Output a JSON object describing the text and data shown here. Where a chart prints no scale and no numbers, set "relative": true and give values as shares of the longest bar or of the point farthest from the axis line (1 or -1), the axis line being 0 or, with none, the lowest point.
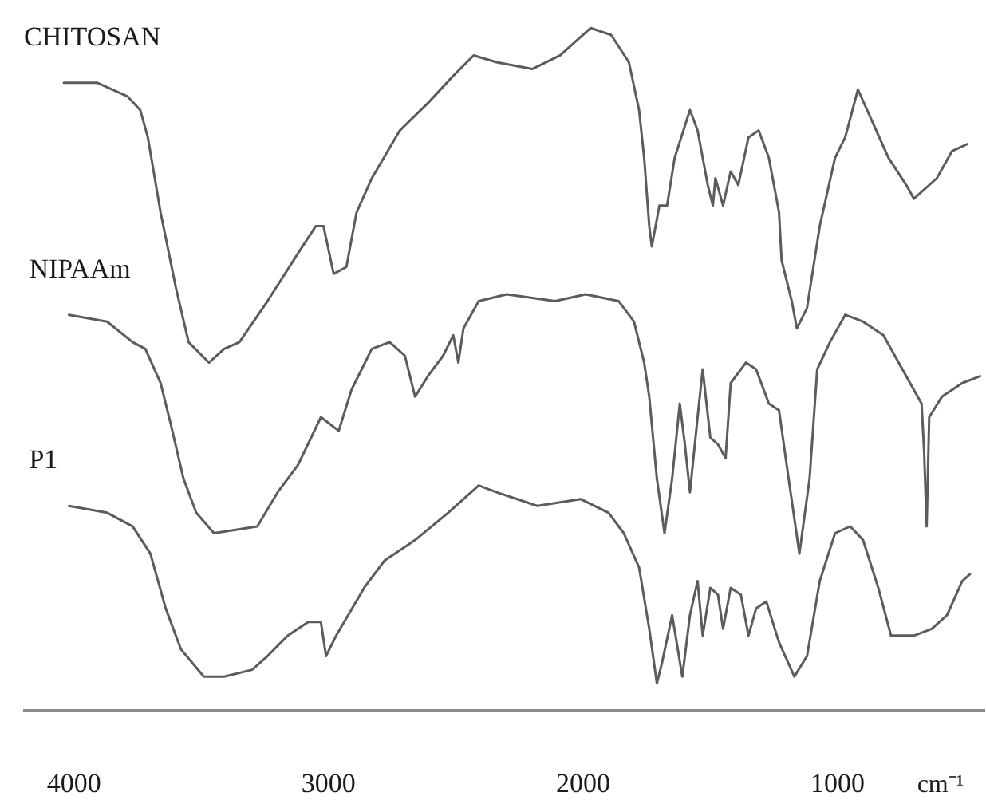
{
  "chart_data": {
    "type": "line",
    "relative": true,
    "xlabel": "cm⁻¹",
    "xlim": [
      4200,
      420
    ],
    "xticks": [
      4000,
      3000,
      2000,
      1000
    ],
    "line_style": "solid",
    "series": [
      {
        "name": "CHITOSAN",
        "color": "#5c5c5c",
        "x": [
          4040,
          3910,
          3790,
          3740,
          3710,
          3660,
          3600,
          3550,
          3470,
          3410,
          3350,
          3240,
          3120,
          3050,
          3020,
          2980,
          2930,
          2890,
          2830,
          2720,
          2610,
          2510,
          2430,
          2340,
          2200,
          2090,
          1970,
          1890,
          1820,
          1780,
          1760,
          1740,
          1730,
          1700,
          1670,
          1640,
          1580,
          1550,
          1510,
          1490,
          1480,
          1450,
          1420,
          1390,
          1350,
          1310,
          1270,
          1230,
          1220,
          1180,
          1160,
          1120,
          1070,
          1010,
          970,
          920,
          860,
          800,
          730,
          700,
          610,
          550,
          490
        ],
        "values": [
          0.92,
          0.92,
          0.9,
          0.88,
          0.84,
          0.73,
          0.62,
          0.54,
          0.51,
          0.53,
          0.54,
          0.6,
          0.67,
          0.71,
          0.71,
          0.64,
          0.65,
          0.73,
          0.78,
          0.85,
          0.89,
          0.93,
          0.96,
          0.95,
          0.94,
          0.96,
          1.0,
          0.99,
          0.95,
          0.88,
          0.81,
          0.71,
          0.68,
          0.74,
          0.74,
          0.81,
          0.88,
          0.85,
          0.77,
          0.74,
          0.78,
          0.74,
          0.79,
          0.77,
          0.84,
          0.85,
          0.81,
          0.73,
          0.66,
          0.6,
          0.56,
          0.59,
          0.71,
          0.81,
          0.84,
          0.91,
          0.86,
          0.81,
          0.77,
          0.75,
          0.78,
          0.82,
          0.83
        ]
      },
      {
        "name": "NIPAAm",
        "color": "#5c5c5c",
        "x": [
          4020,
          3870,
          3770,
          3720,
          3660,
          3620,
          3570,
          3520,
          3450,
          3280,
          3200,
          3120,
          3030,
          2960,
          2910,
          2830,
          2760,
          2700,
          2660,
          2610,
          2550,
          2510,
          2490,
          2470,
          2410,
          2300,
          2110,
          1990,
          1860,
          1800,
          1760,
          1740,
          1710,
          1680,
          1650,
          1620,
          1600,
          1580,
          1550,
          1530,
          1500,
          1470,
          1440,
          1420,
          1360,
          1320,
          1270,
          1230,
          1200,
          1150,
          1110,
          1080,
          1030,
          970,
          900,
          820,
          730,
          670,
          660,
          650,
          640,
          590,
          510,
          440
        ],
        "values": [
          0.58,
          0.57,
          0.54,
          0.53,
          0.48,
          0.42,
          0.34,
          0.29,
          0.26,
          0.27,
          0.32,
          0.36,
          0.43,
          0.41,
          0.47,
          0.53,
          0.54,
          0.52,
          0.46,
          0.49,
          0.52,
          0.55,
          0.51,
          0.56,
          0.6,
          0.61,
          0.6,
          0.61,
          0.6,
          0.57,
          0.51,
          0.46,
          0.34,
          0.26,
          0.34,
          0.45,
          0.39,
          0.32,
          0.43,
          0.5,
          0.4,
          0.39,
          0.37,
          0.48,
          0.51,
          0.5,
          0.45,
          0.44,
          0.36,
          0.23,
          0.34,
          0.5,
          0.54,
          0.58,
          0.57,
          0.55,
          0.49,
          0.45,
          0.38,
          0.27,
          0.43,
          0.46,
          0.48,
          0.49
        ]
      },
      {
        "name": "P1",
        "color": "#5c5c5c",
        "x": [
          4020,
          3870,
          3770,
          3700,
          3640,
          3580,
          3490,
          3410,
          3300,
          3240,
          3160,
          3080,
          3030,
          3010,
          2970,
          2860,
          2780,
          2660,
          2530,
          2410,
          2340,
          2180,
          2010,
          1900,
          1840,
          1780,
          1740,
          1710,
          1690,
          1650,
          1610,
          1580,
          1550,
          1530,
          1500,
          1470,
          1450,
          1420,
          1380,
          1350,
          1320,
          1280,
          1230,
          1170,
          1120,
          1070,
          1010,
          950,
          900,
          840,
          790,
          730,
          700,
          630,
          570,
          510,
          480
        ],
        "values": [
          0.3,
          0.29,
          0.27,
          0.23,
          0.15,
          0.09,
          0.05,
          0.05,
          0.06,
          0.08,
          0.11,
          0.13,
          0.13,
          0.08,
          0.11,
          0.18,
          0.22,
          0.25,
          0.29,
          0.33,
          0.32,
          0.3,
          0.31,
          0.29,
          0.26,
          0.21,
          0.12,
          0.04,
          0.07,
          0.14,
          0.05,
          0.14,
          0.19,
          0.11,
          0.18,
          0.17,
          0.12,
          0.18,
          0.17,
          0.11,
          0.15,
          0.16,
          0.1,
          0.05,
          0.08,
          0.19,
          0.26,
          0.27,
          0.25,
          0.18,
          0.11,
          0.11,
          0.11,
          0.12,
          0.14,
          0.19,
          0.2
        ]
      }
    ]
  }
}
